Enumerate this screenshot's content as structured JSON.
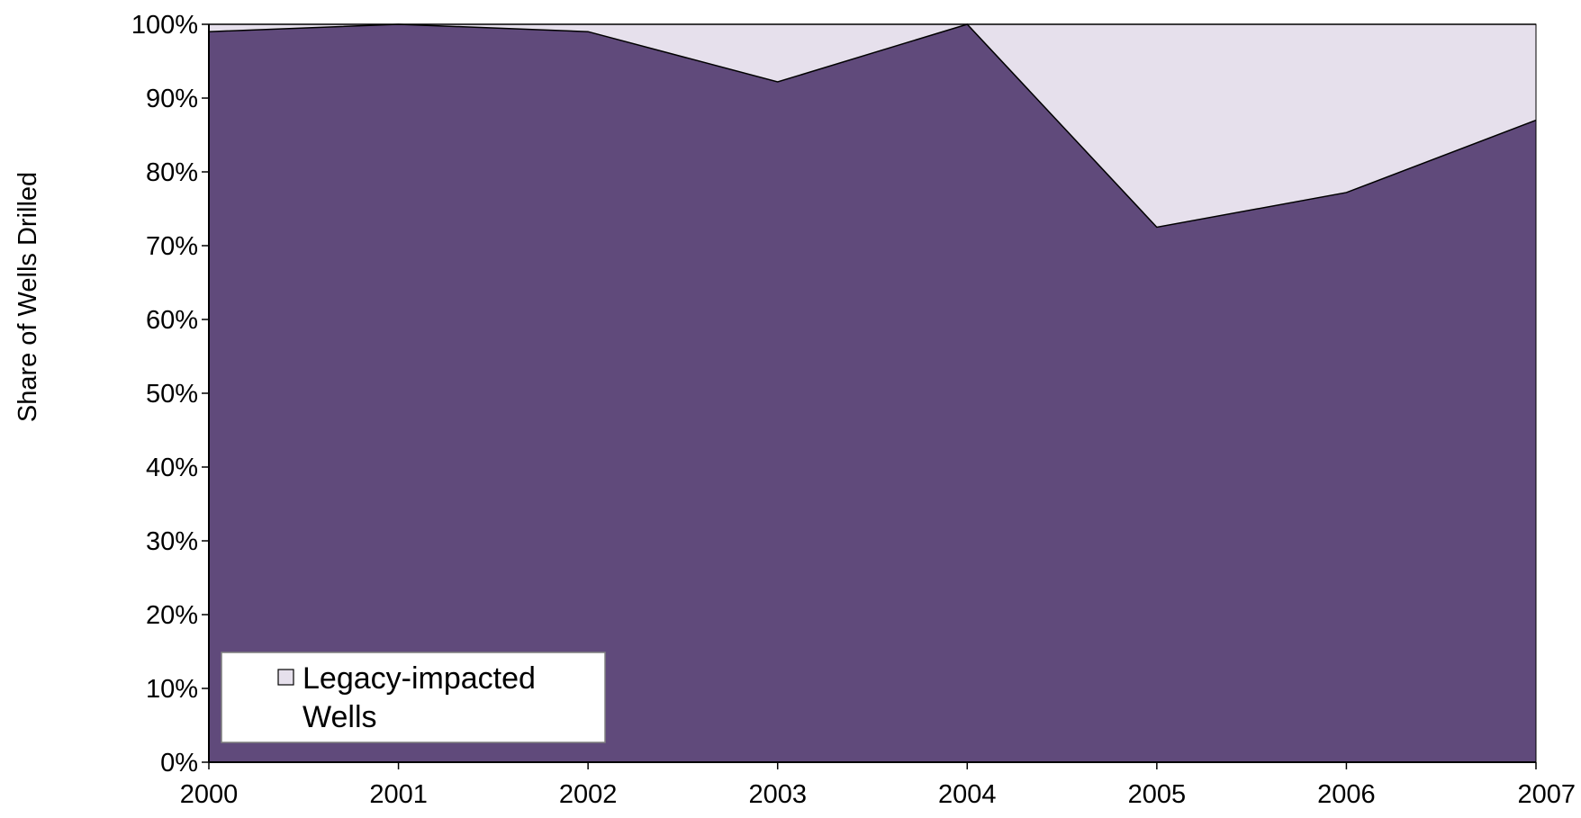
{
  "chart_data": {
    "type": "area",
    "stacked": true,
    "percent": true,
    "x": [
      2000,
      2001,
      2002,
      2003,
      2004,
      2005,
      2006,
      2007
    ],
    "series": [
      {
        "name": "",
        "values": [
          99,
          100,
          99,
          92.2,
          100,
          72.5,
          77.2,
          87
        ],
        "color": "#604a7b"
      },
      {
        "name": "Legacy-impacted Wells",
        "values": [
          1,
          0,
          1,
          7.8,
          0,
          27.5,
          22.8,
          13
        ],
        "color": "#e6e0ec"
      }
    ],
    "xlabel": "",
    "ylabel": "Share of Wells Drilled",
    "ylim": [
      0,
      100
    ],
    "yticks": [
      "0%",
      "10%",
      "20%",
      "30%",
      "40%",
      "50%",
      "60%",
      "70%",
      "80%",
      "90%",
      "100%"
    ],
    "xticks": [
      "2000",
      "2001",
      "2002",
      "2003",
      "2004",
      "2005",
      "2006",
      "2007"
    ],
    "grid": false,
    "legend": {
      "placement": "bottom-left",
      "entries": [
        {
          "label_line1": "Legacy-impacted",
          "label_line2": "Wells"
        }
      ]
    }
  }
}
